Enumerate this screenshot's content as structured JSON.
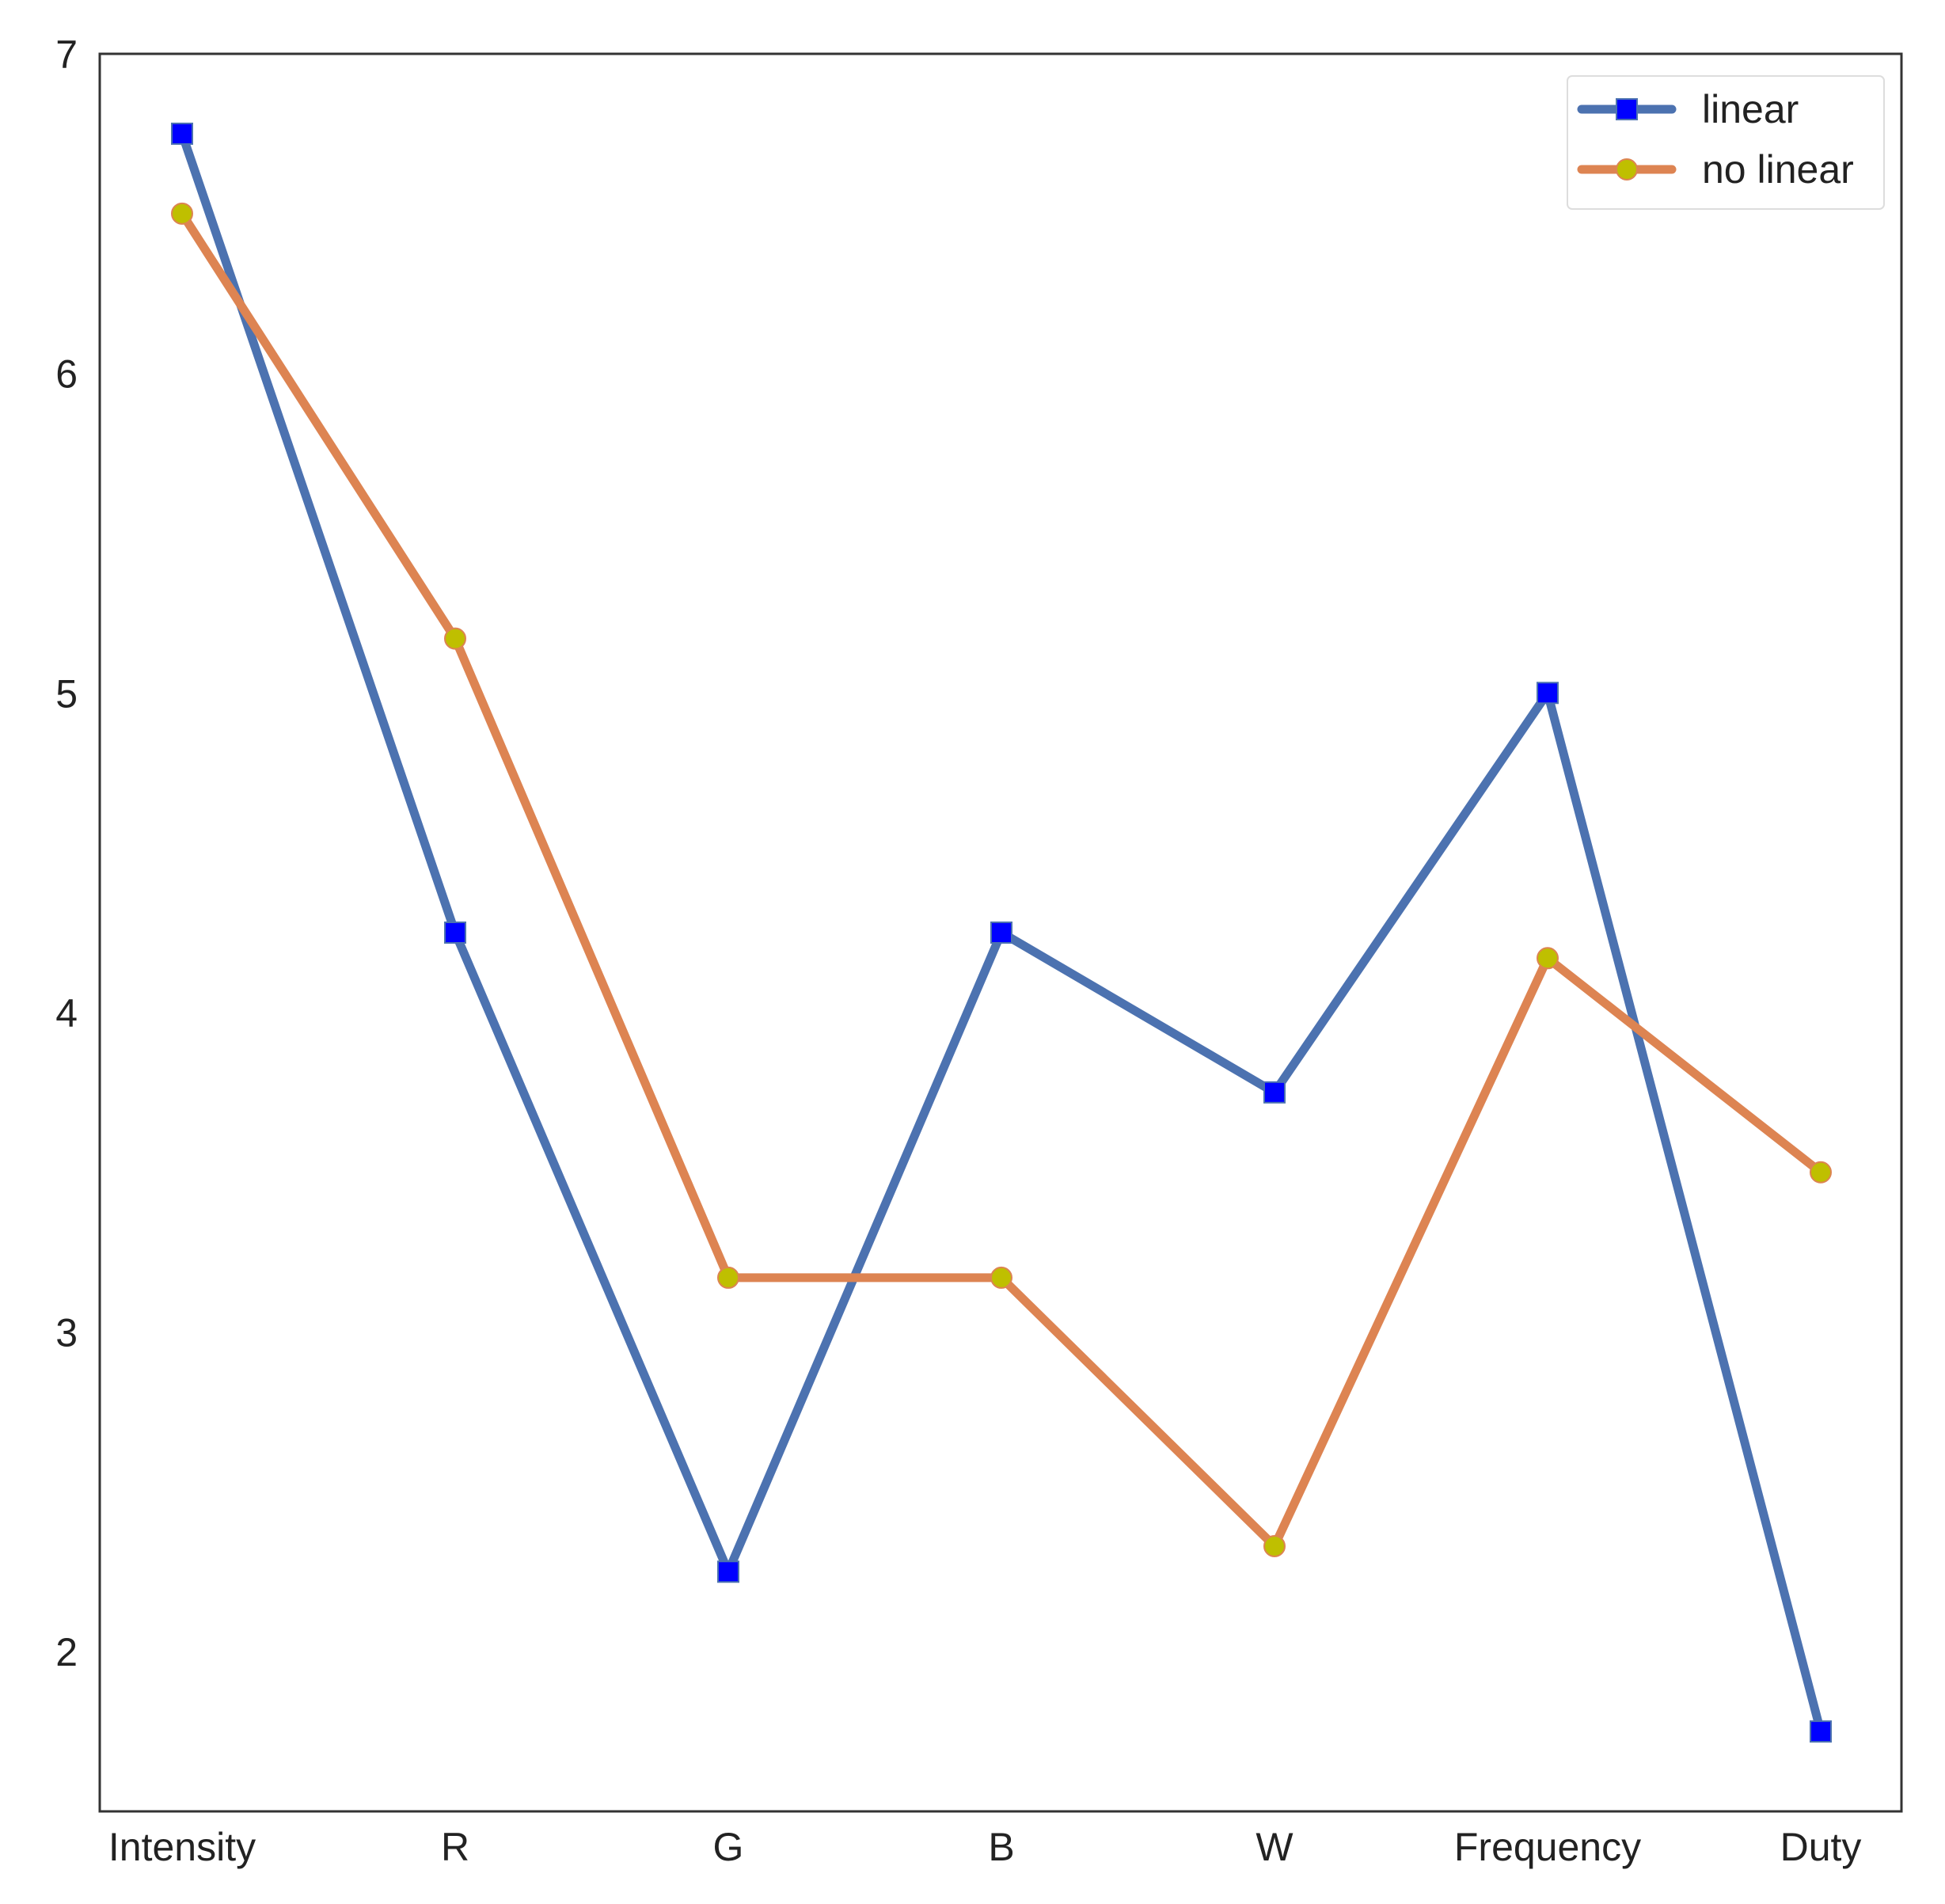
{
  "chart_data": {
    "type": "line",
    "title": "",
    "xlabel": "",
    "ylabel": "",
    "categories": [
      "Intensity",
      "R",
      "G",
      "B",
      "W",
      "Frequency",
      "Duty"
    ],
    "ylim": [
      1.5,
      7
    ],
    "yticks": [
      2,
      3,
      4,
      5,
      6,
      7
    ],
    "grid": false,
    "legend_position": "top-right",
    "series": [
      {
        "name": "linear",
        "values": [
          6.75,
          4.25,
          2.25,
          4.25,
          3.75,
          5.0,
          1.75
        ],
        "line_color": "#4c72b0",
        "marker": "square",
        "marker_color": "#0000ff"
      },
      {
        "name": "no linear",
        "values": [
          6.5,
          5.17,
          3.17,
          3.17,
          2.33,
          4.17,
          3.5
        ],
        "line_color": "#dd8452",
        "marker": "circle",
        "marker_color": "#bfbf00"
      }
    ]
  }
}
